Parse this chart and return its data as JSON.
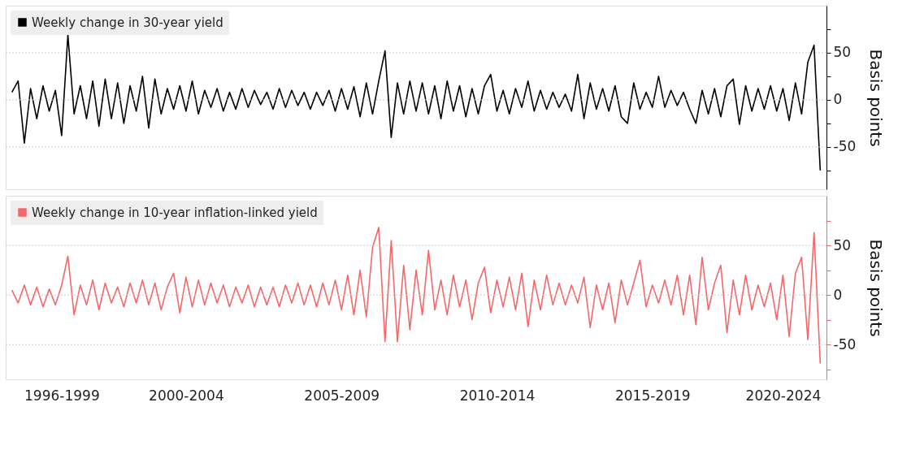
{
  "chart_data": [
    {
      "type": "line",
      "legend": "top left",
      "tick_labels": "y",
      "ylabel": "Basis points",
      "ylim": [
        -95,
        100
      ],
      "yticks": [
        {
          "value": 75,
          "label": null
        },
        50,
        {
          "value": 25,
          "label": null
        },
        0,
        {
          "value": -25,
          "label": null
        },
        -50,
        {
          "value": -75,
          "label": null
        }
      ],
      "categories": [
        null,
        null,
        null,
        null,
        null,
        null,
        null,
        null,
        null,
        null,
        null,
        null,
        null,
        null,
        null,
        null,
        null,
        null,
        null,
        null,
        null,
        null,
        null,
        null,
        null,
        null,
        null,
        null,
        null,
        null,
        null,
        null,
        null,
        null,
        null,
        null,
        null,
        null,
        null,
        null,
        null,
        null,
        null,
        null,
        null,
        null,
        null,
        null,
        null,
        null,
        null,
        null,
        null,
        null,
        null,
        null,
        null,
        null,
        null,
        null,
        null,
        null,
        null,
        null,
        null,
        null,
        null,
        null,
        null,
        null,
        null,
        null,
        null,
        null,
        null,
        null,
        null,
        null,
        null,
        null,
        null,
        null,
        null,
        null,
        null,
        null,
        null,
        null,
        null,
        null,
        null,
        null,
        null,
        null,
        null,
        null,
        null,
        null,
        null,
        null,
        null,
        null,
        null,
        null,
        null,
        null,
        null,
        null,
        null,
        null,
        null,
        null,
        null,
        null,
        null,
        null,
        null,
        null,
        null,
        null,
        null,
        null,
        null,
        null,
        null,
        null,
        null,
        null,
        null,
        null,
        null
      ],
      "series": [
        {
          "name": "Weekly change in 30-year yield",
          "color": "#000000",
          "values": [
            8,
            20,
            -46,
            12,
            -20,
            15,
            -12,
            10,
            -38,
            69,
            -15,
            15,
            -20,
            20,
            -28,
            22,
            -20,
            18,
            -25,
            15,
            -12,
            25,
            -30,
            22,
            -15,
            12,
            -10,
            15,
            -12,
            20,
            -15,
            10,
            -8,
            12,
            -12,
            8,
            -10,
            12,
            -8,
            10,
            -5,
            8,
            -10,
            12,
            -8,
            10,
            -6,
            8,
            -10,
            8,
            -6,
            10,
            -12,
            12,
            -10,
            14,
            -18,
            18,
            -15,
            20,
            52,
            -40,
            18,
            -15,
            20,
            -12,
            18,
            -15,
            15,
            -20,
            20,
            -12,
            15,
            -18,
            12,
            -15,
            15,
            27,
            -12,
            10,
            -15,
            12,
            -8,
            20,
            -12,
            10,
            -10,
            8,
            -8,
            6,
            -12,
            27,
            -20,
            18,
            -10,
            12,
            -12,
            15,
            -18,
            -25,
            18,
            -10,
            8,
            -8,
            25,
            -8,
            10,
            -6,
            8,
            -10,
            -25,
            10,
            -15,
            12,
            -18,
            15,
            22,
            -26,
            15,
            -12,
            12,
            -10,
            15,
            -12,
            12,
            -22,
            18,
            -15,
            40,
            58,
            -75
          ]
        }
      ],
      "ref_lines": [
        {
          "axis": "y",
          "value": 50,
          "color": "#cccccc",
          "line_style": "dotted"
        },
        {
          "axis": "y",
          "value": 0,
          "color": "#cccccc",
          "line_style": "dotted"
        },
        {
          "axis": "y",
          "value": -50,
          "color": "#cccccc",
          "line_style": "dotted"
        }
      ]
    },
    {
      "type": "line",
      "legend": "top left",
      "ylabel": "Basis points",
      "ylim": [
        -85,
        100
      ],
      "yticks": [
        {
          "value": 75,
          "label": null
        },
        50,
        {
          "value": 25,
          "label": null
        },
        0,
        {
          "value": -25,
          "label": null
        },
        -50,
        {
          "value": -75,
          "label": null
        }
      ],
      "categories": [
        null,
        null,
        null,
        null,
        null,
        null,
        null,
        null,
        "1996-1999",
        null,
        null,
        null,
        null,
        null,
        null,
        null,
        null,
        null,
        null,
        null,
        null,
        null,
        null,
        null,
        null,
        null,
        null,
        null,
        "2000-2004",
        null,
        null,
        null,
        null,
        null,
        null,
        null,
        null,
        null,
        null,
        null,
        null,
        null,
        null,
        null,
        null,
        null,
        null,
        null,
        null,
        null,
        null,
        null,
        null,
        "2005-2009",
        null,
        null,
        null,
        null,
        null,
        null,
        null,
        null,
        null,
        null,
        null,
        null,
        null,
        null,
        null,
        null,
        null,
        null,
        null,
        null,
        null,
        null,
        null,
        null,
        "2010-2014",
        null,
        null,
        null,
        null,
        null,
        null,
        null,
        null,
        null,
        null,
        null,
        null,
        null,
        null,
        null,
        null,
        null,
        null,
        null,
        null,
        null,
        null,
        null,
        null,
        "2015-2019",
        null,
        null,
        null,
        null,
        null,
        null,
        null,
        null,
        null,
        null,
        null,
        null,
        null,
        null,
        null,
        null,
        null,
        null,
        null,
        null,
        "2020-2024",
        null,
        null,
        null,
        null,
        null,
        null
      ],
      "series": [
        {
          "name": "Weekly change in 10-year inflation-linked yield",
          "color": "#f4676a",
          "values": [
            5,
            -8,
            10,
            -10,
            8,
            -12,
            6,
            -10,
            10,
            39,
            -20,
            10,
            -10,
            15,
            -15,
            12,
            -8,
            8,
            -12,
            12,
            -8,
            15,
            -10,
            12,
            -15,
            8,
            22,
            -18,
            18,
            -12,
            15,
            -10,
            12,
            -8,
            10,
            -12,
            8,
            -8,
            10,
            -12,
            8,
            -10,
            8,
            -12,
            10,
            -8,
            12,
            -10,
            10,
            -12,
            12,
            -10,
            15,
            -15,
            20,
            -20,
            25,
            -22,
            48,
            68,
            -47,
            55,
            -47,
            30,
            -35,
            25,
            -20,
            45,
            -15,
            15,
            -20,
            20,
            -12,
            15,
            -25,
            12,
            28,
            -18,
            15,
            -12,
            18,
            -15,
            22,
            -32,
            15,
            -15,
            20,
            -10,
            12,
            -10,
            10,
            -8,
            18,
            -33,
            10,
            -15,
            12,
            -28,
            15,
            -10,
            12,
            35,
            -12,
            10,
            -8,
            15,
            -10,
            20,
            -20,
            20,
            -30,
            38,
            -15,
            12,
            30,
            -38,
            15,
            -20,
            20,
            -15,
            10,
            -12,
            12,
            -25,
            20,
            -42,
            22,
            38,
            -45,
            63,
            -69
          ]
        }
      ],
      "ref_lines": [
        {
          "axis": "y",
          "value": 50,
          "color": "#cccccc",
          "line_style": "dotted"
        },
        {
          "axis": "y",
          "value": 0,
          "color": "#cccccc",
          "line_style": "dotted"
        },
        {
          "axis": "y",
          "value": -50,
          "color": "#cccccc",
          "line_style": "dotted"
        }
      ]
    }
  ]
}
